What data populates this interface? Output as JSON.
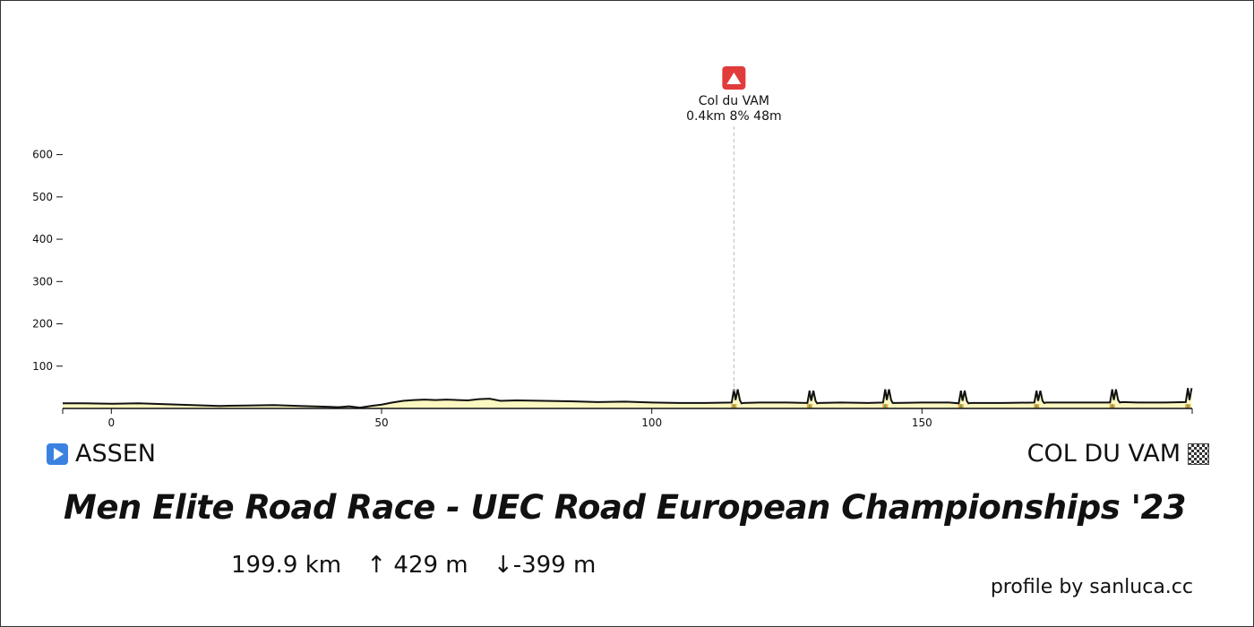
{
  "chart_data": {
    "type": "area",
    "title": "Men Elite Road Race - UEC Road European Championships '23",
    "xlabel": "",
    "ylabel": "",
    "xlim": [
      -9,
      200
    ],
    "ylim": [
      0,
      650
    ],
    "y_ticks": [
      100,
      200,
      300,
      400,
      500,
      600
    ],
    "x_ticks": [
      0,
      50,
      100,
      150
    ],
    "profile": {
      "x": [
        -9,
        -5,
        0,
        5,
        10,
        15,
        20,
        25,
        30,
        35,
        40,
        42,
        44,
        46,
        48,
        50,
        52,
        54,
        56,
        58,
        60,
        62,
        64,
        66,
        68,
        70,
        72,
        75,
        80,
        85,
        90,
        95,
        100,
        105,
        110,
        114.8,
        115.2,
        115.5,
        115.9,
        116.3,
        116.6,
        117,
        120,
        125,
        128.8,
        129.2,
        129.5,
        129.9,
        130.3,
        130.6,
        131,
        135,
        140,
        142.8,
        143.2,
        143.5,
        143.9,
        144.3,
        144.6,
        145,
        150,
        155,
        156.8,
        157.2,
        157.5,
        157.9,
        158.3,
        158.6,
        159,
        165,
        170.8,
        171.2,
        171.5,
        171.9,
        172.3,
        172.6,
        173,
        180,
        184.8,
        185.2,
        185.5,
        185.9,
        186.3,
        186.6,
        187,
        190,
        195,
        198.8,
        199.2,
        199.5,
        199.9
      ],
      "elevation": [
        12,
        12,
        11,
        12,
        10,
        8,
        6,
        7,
        8,
        6,
        4,
        3,
        5,
        2,
        6,
        9,
        14,
        18,
        20,
        21,
        20,
        21,
        20,
        19,
        22,
        23,
        18,
        19,
        18,
        17,
        15,
        16,
        14,
        13,
        13,
        14,
        45,
        20,
        45,
        20,
        12,
        13,
        14,
        14,
        13,
        42,
        18,
        42,
        18,
        12,
        13,
        14,
        13,
        14,
        45,
        20,
        45,
        20,
        13,
        13,
        14,
        14,
        12,
        42,
        18,
        42,
        18,
        12,
        13,
        13,
        14,
        42,
        18,
        42,
        18,
        13,
        14,
        14,
        14,
        45,
        20,
        45,
        20,
        14,
        15,
        14,
        14,
        15,
        48,
        20,
        48
      ]
    },
    "climbs": [
      {
        "name": "Col du VAM",
        "detail": "0.4km 8% 48m",
        "km": 115.2
      }
    ],
    "climb_km": [
      115.2,
      129.2,
      143.2,
      157.2,
      171.2,
      185.2,
      199.2
    ],
    "fill_color": "#fbf7c0",
    "stroke_color": "#111111",
    "climb_color": "#e23b3b"
  },
  "route": {
    "start": "ASSEN",
    "finish": "COL DU VAM"
  },
  "stats": {
    "distance": "199.9 km",
    "ascent": "↑ 429 m",
    "descent": "↓-399 m"
  },
  "credit": "profile by sanluca.cc",
  "icons": {
    "start": "play-icon",
    "finish": "checkered-flag-icon",
    "climb": "mountain-icon"
  }
}
